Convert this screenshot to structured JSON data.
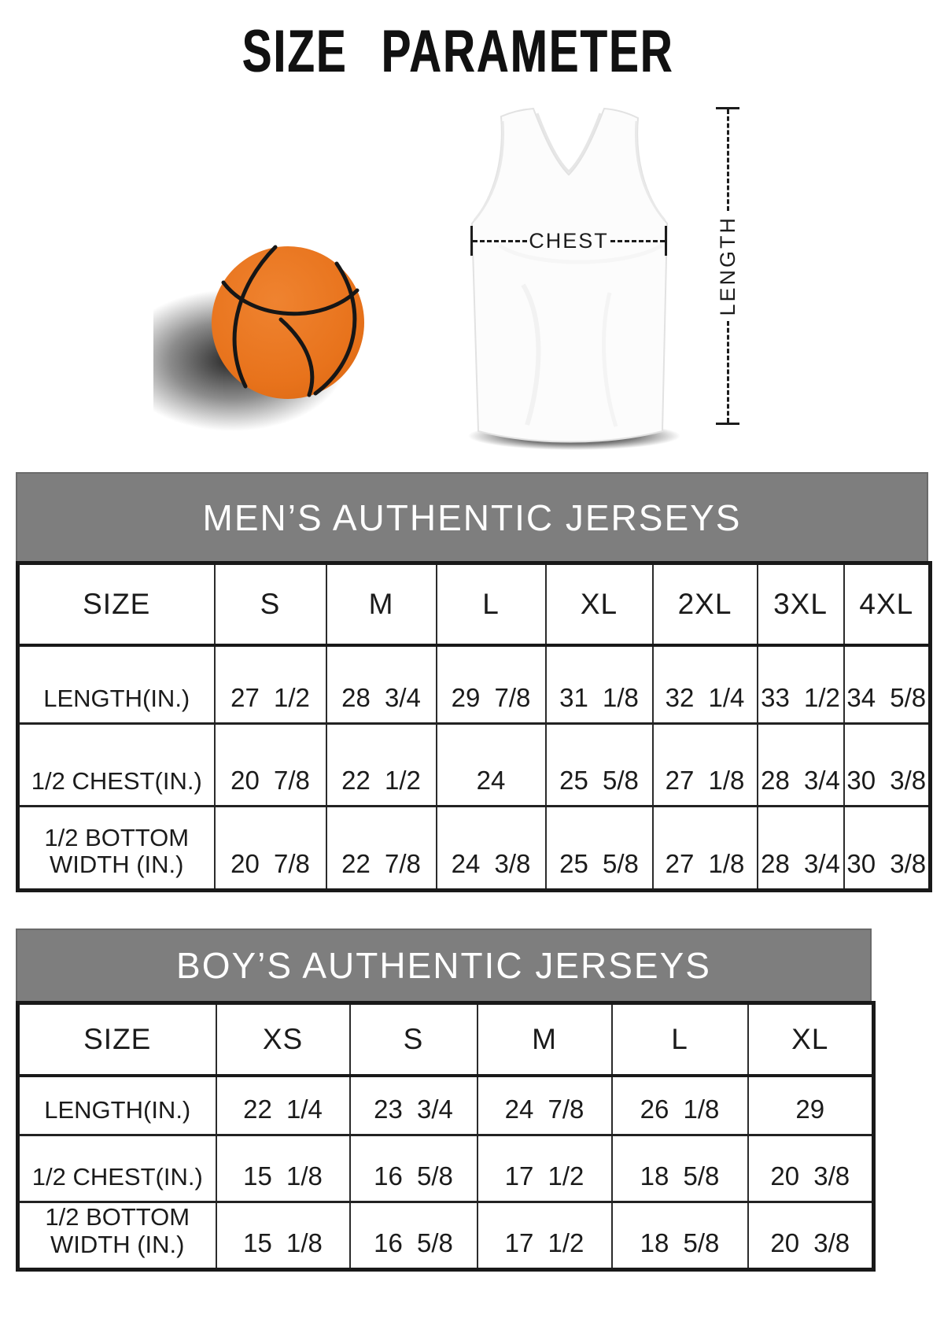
{
  "page": {
    "title": "SIZE PARAMETER"
  },
  "diagram": {
    "chest_label": "CHEST",
    "length_label": "LENGTH",
    "icons": [
      "basketball-icon",
      "jersey-icon"
    ]
  },
  "mens_table": {
    "title": "MEN’S AUTHENTIC JERSEYS",
    "header": [
      "SIZE",
      "S",
      "M",
      "L",
      "XL",
      "2XL",
      "3XL",
      "4XL"
    ],
    "rows": [
      {
        "label": "LENGTH(IN.)",
        "values": [
          "27 1/2",
          "28 3/4",
          "29 7/8",
          "31 1/8",
          "32 1/4",
          "33 1/2",
          "34 5/8"
        ]
      },
      {
        "label": "1/2 CHEST(IN.)",
        "values": [
          "20 7/8",
          "22 1/2",
          "24",
          "25 5/8",
          "27 1/8",
          "28 3/4",
          "30 3/8"
        ]
      },
      {
        "label": "1/2 BOTTOM\nWIDTH (IN.)",
        "values": [
          "20 7/8",
          "22 7/8",
          "24 3/8",
          "25 5/8",
          "27 1/8",
          "28 3/4",
          "30 3/8"
        ]
      }
    ]
  },
  "boys_table": {
    "title": "BOY’S AUTHENTIC JERSEYS",
    "header": [
      "SIZE",
      "XS",
      "S",
      "M",
      "L",
      "XL"
    ],
    "rows": [
      {
        "label": "LENGTH(IN.)",
        "values": [
          "22 1/4",
          "23 3/4",
          "24 7/8",
          "26 1/8",
          "29"
        ]
      },
      {
        "label": "1/2 CHEST(IN.)",
        "values": [
          "15 1/8",
          "16 5/8",
          "17 1/2",
          "18 5/8",
          "20 3/8"
        ]
      },
      {
        "label": "1/2 BOTTOM\nWIDTH (IN.)",
        "values": [
          "15 1/8",
          "16 5/8",
          "17 1/2",
          "18 5/8",
          "20 3/8"
        ]
      }
    ]
  },
  "colors": {
    "header_band_gray": "#7e7e7e",
    "table_border_black": "#191919",
    "basketball_orange": "#e8731c",
    "band_text_white": "#ffffff"
  }
}
